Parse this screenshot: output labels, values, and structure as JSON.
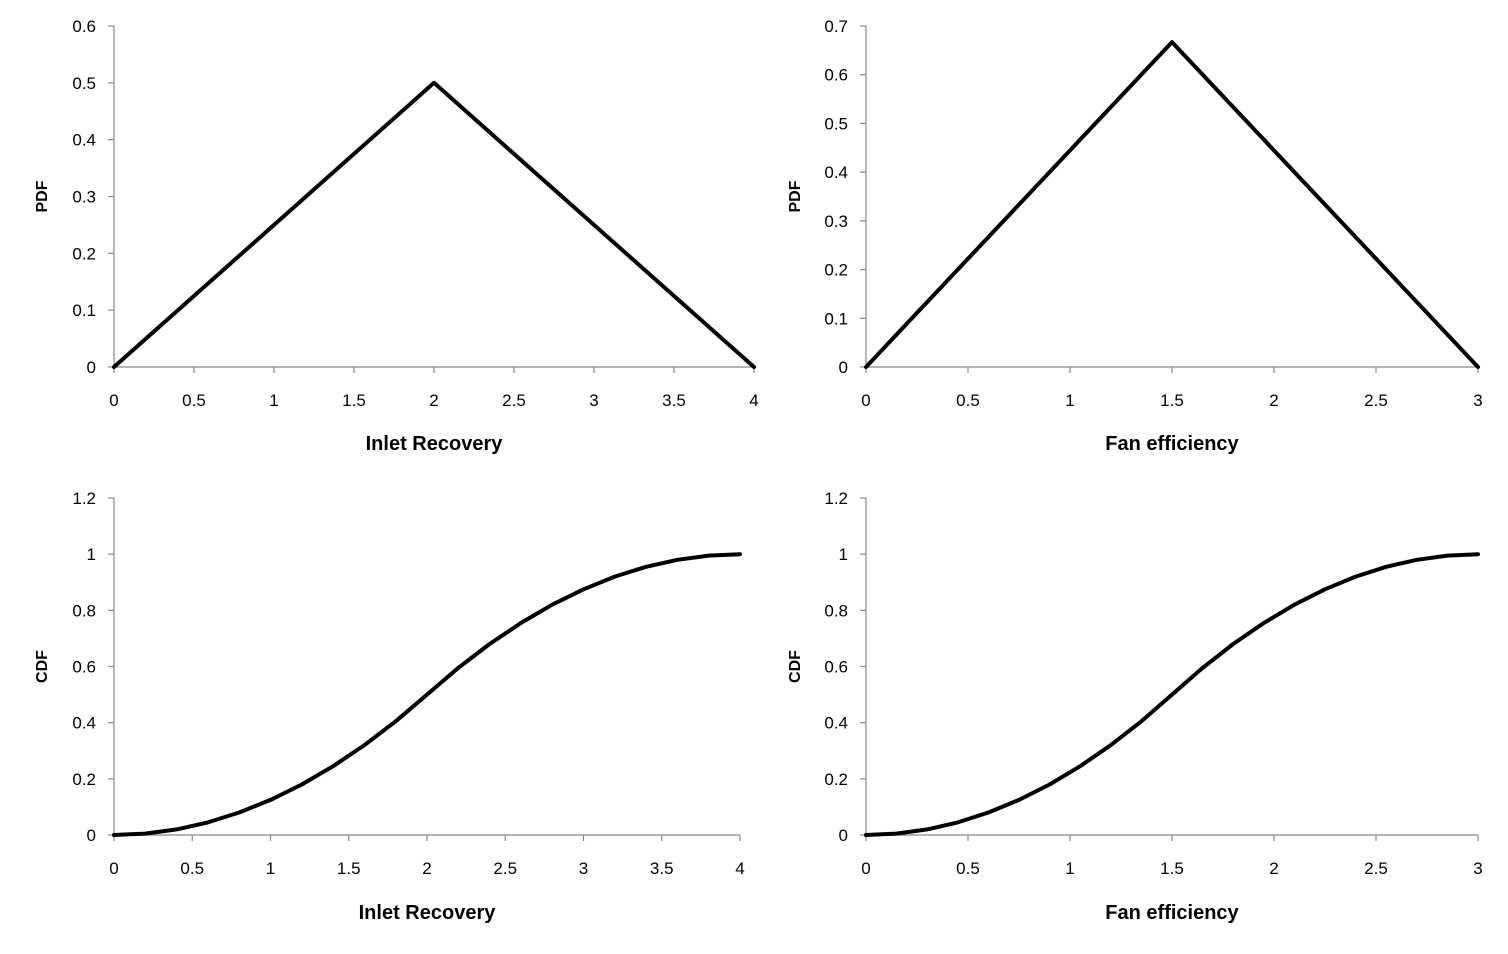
{
  "chart_data": [
    {
      "type": "line",
      "xlabel": "Inlet Recovery",
      "ylabel": "PDF",
      "xlim": [
        0,
        4
      ],
      "ylim": [
        0,
        0.6
      ],
      "xticks": [
        0,
        0.5,
        1,
        1.5,
        2,
        2.5,
        3,
        3.5,
        4
      ],
      "yticks": [
        0,
        0.1,
        0.2,
        0.3,
        0.4,
        0.5,
        0.6
      ],
      "xtick_labels": [
        "0",
        "0.5",
        "1",
        "1.5",
        "2",
        "2.5",
        "3",
        "3.5",
        "4"
      ],
      "ytick_labels": [
        "0",
        "0.1",
        "0.2",
        "0.3",
        "0.4",
        "0.5",
        "0.6"
      ],
      "grid": false,
      "series": [
        {
          "x": [
            0,
            2,
            4
          ],
          "y": [
            0,
            0.5,
            0
          ]
        }
      ]
    },
    {
      "type": "line",
      "xlabel": "Fan efficiency",
      "ylabel": "PDF",
      "xlim": [
        0,
        3
      ],
      "ylim": [
        0,
        0.7
      ],
      "xticks": [
        0,
        0.5,
        1,
        1.5,
        2,
        2.5,
        3
      ],
      "yticks": [
        0,
        0.1,
        0.2,
        0.3,
        0.4,
        0.5,
        0.6,
        0.7
      ],
      "xtick_labels": [
        "0",
        "0.5",
        "1",
        "1.5",
        "2",
        "2.5",
        "3"
      ],
      "ytick_labels": [
        "0",
        "0.1",
        "0.2",
        "0.3",
        "0.4",
        "0.5",
        "0.6",
        "0.7"
      ],
      "grid": false,
      "series": [
        {
          "x": [
            0,
            1.5,
            3
          ],
          "y": [
            0,
            0.667,
            0
          ]
        }
      ]
    },
    {
      "type": "line",
      "xlabel": "Inlet Recovery",
      "ylabel": "CDF",
      "xlim": [
        0,
        4
      ],
      "ylim": [
        0,
        1.2
      ],
      "xticks": [
        0,
        0.5,
        1,
        1.5,
        2,
        2.5,
        3,
        3.5,
        4
      ],
      "yticks": [
        0,
        0.2,
        0.4,
        0.6,
        0.8,
        1,
        1.2
      ],
      "xtick_labels": [
        "0",
        "0.5",
        "1",
        "1.5",
        "2",
        "2.5",
        "3",
        "3.5",
        "4"
      ],
      "ytick_labels": [
        "0",
        "0.2",
        "0.4",
        "0.6",
        "0.8",
        "1",
        "1.2"
      ],
      "grid": false,
      "series": [
        {
          "x": [
            0,
            0.2,
            0.4,
            0.6,
            0.8,
            1,
            1.2,
            1.4,
            1.6,
            1.8,
            2,
            2.2,
            2.4,
            2.6,
            2.8,
            3,
            3.2,
            3.4,
            3.6,
            3.8,
            4
          ],
          "y": [
            0,
            0.005,
            0.02,
            0.045,
            0.08,
            0.125,
            0.18,
            0.245,
            0.32,
            0.405,
            0.5,
            0.595,
            0.68,
            0.755,
            0.82,
            0.875,
            0.92,
            0.955,
            0.98,
            0.995,
            1
          ]
        }
      ]
    },
    {
      "type": "line",
      "xlabel": "Fan efficiency",
      "ylabel": "CDF",
      "xlim": [
        0,
        3
      ],
      "ylim": [
        0,
        1.2
      ],
      "xticks": [
        0,
        0.5,
        1,
        1.5,
        2,
        2.5,
        3
      ],
      "yticks": [
        0,
        0.2,
        0.4,
        0.6,
        0.8,
        1,
        1.2
      ],
      "xtick_labels": [
        "0",
        "0.5",
        "1",
        "1.5",
        "2",
        "2.5",
        "3"
      ],
      "ytick_labels": [
        "0",
        "0.2",
        "0.4",
        "0.6",
        "0.8",
        "1",
        "1.2"
      ],
      "grid": false,
      "series": [
        {
          "x": [
            0,
            0.15,
            0.3,
            0.45,
            0.6,
            0.75,
            0.9,
            1.05,
            1.2,
            1.35,
            1.5,
            1.65,
            1.8,
            1.95,
            2.1,
            2.25,
            2.4,
            2.55,
            2.7,
            2.85,
            3
          ],
          "y": [
            0,
            0.005,
            0.02,
            0.045,
            0.08,
            0.125,
            0.18,
            0.245,
            0.32,
            0.405,
            0.5,
            0.595,
            0.68,
            0.755,
            0.82,
            0.875,
            0.92,
            0.955,
            0.98,
            0.995,
            1
          ]
        }
      ]
    }
  ]
}
